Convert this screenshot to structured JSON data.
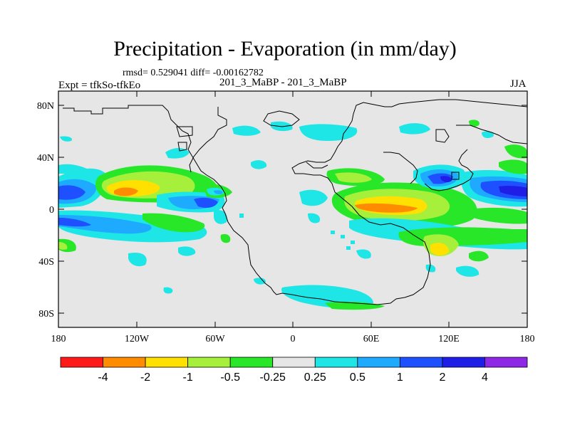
{
  "figure": {
    "title": "Precipitation - Evaporation (in mm/day)",
    "stats": "rmsd= 0.529041 diff= -0.00162782",
    "expt": "Expt = tfkSo-tfkEo",
    "expt_name": "201_3_MaBP - 201_3_MaBP",
    "season": "JJA"
  },
  "axes": {
    "y_ticks": [
      "80N",
      "40N",
      "0",
      "40S",
      "80S"
    ],
    "x_ticks": [
      "180",
      "120W",
      "60W",
      "0",
      "60E",
      "120E",
      "180"
    ]
  },
  "colorbar": {
    "colors": [
      "#ff1a1a",
      "#ff8c00",
      "#ffe000",
      "#a6f03c",
      "#28e628",
      "#e6e6e6",
      "#1ee6e6",
      "#1eaaff",
      "#1e50ff",
      "#1e1ee6",
      "#8c28e6"
    ],
    "labels": [
      "-4",
      "-2",
      "-1",
      "-0.5",
      "-0.25",
      "0.25",
      "0.5",
      "1",
      "2",
      "4"
    ]
  }
}
